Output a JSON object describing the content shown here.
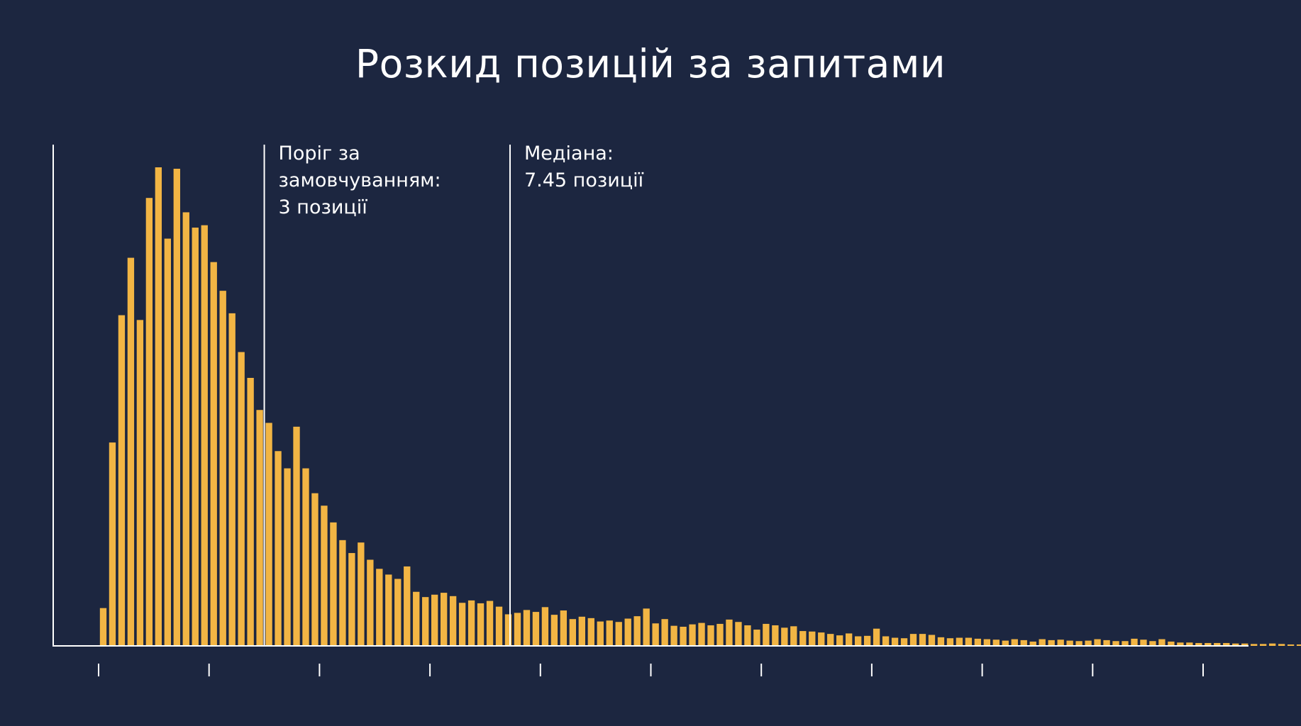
{
  "chart_data": {
    "type": "bar",
    "title": "Розкид позицій за запитами",
    "xlabel": "",
    "ylabel": "",
    "xlim": [
      0,
      20
    ],
    "ylim": [
      0,
      100
    ],
    "x_ticks": [
      0,
      2,
      4,
      6,
      8,
      10,
      12,
      14,
      16,
      18,
      20
    ],
    "tick_labels_shown": false,
    "bin_width": 0.1667,
    "bar_color": "#f2b544",
    "axis_color": "#ffffff",
    "values": [
      7.9,
      42.5,
      69.1,
      81.1,
      68.1,
      93.6,
      100,
      85.1,
      99.7,
      90.6,
      87.4,
      87.9,
      80.2,
      74.2,
      69.5,
      61.4,
      56.0,
      49.3,
      46.6,
      40.7,
      37.1,
      45.8,
      37.1,
      31.9,
      29.3,
      25.8,
      22.1,
      19.4,
      21.6,
      18.0,
      16.1,
      14.9,
      14.0,
      16.6,
      11.3,
      10.2,
      10.7,
      11.1,
      10.4,
      9.0,
      9.5,
      8.9,
      9.4,
      8.2,
      6.6,
      6.9,
      7.5,
      7.1,
      8.1,
      6.5,
      7.4,
      5.6,
      6.1,
      5.8,
      5.1,
      5.3,
      5.0,
      5.7,
      6.2,
      7.8,
      4.7,
      5.6,
      4.2,
      4.0,
      4.5,
      4.8,
      4.3,
      4.6,
      5.5,
      5.0,
      4.3,
      3.4,
      4.6,
      4.3,
      3.8,
      4.1,
      3.1,
      3.0,
      2.8,
      2.5,
      2.2,
      2.6,
      2.0,
      2.1,
      3.6,
      2.0,
      1.7,
      1.6,
      2.5,
      2.5,
      2.3,
      1.8,
      1.6,
      1.7,
      1.7,
      1.5,
      1.4,
      1.3,
      1.1,
      1.4,
      1.2,
      0.9,
      1.4,
      1.2,
      1.3,
      1.1,
      1.0,
      1.1,
      1.4,
      1.2,
      1.0,
      1.0,
      1.5,
      1.3,
      1.0,
      1.4,
      0.9,
      0.7,
      0.7,
      0.6,
      0.6,
      0.6,
      0.6,
      0.5,
      0.5,
      0.4,
      0.4,
      0.5,
      0.4,
      0.3,
      0.3,
      0.3,
      0.3,
      0.2,
      0.2,
      0.2,
      0.1,
      0.1,
      0.1,
      0.1
    ],
    "reference_lines": [
      {
        "id": "default",
        "x": 3,
        "label_lines": [
          "Поріг за",
          "замовчуванням:",
          "3 позиції"
        ]
      },
      {
        "id": "median",
        "x": 7.45,
        "label_lines": [
          "Медіана:",
          "7.45 позиції"
        ]
      }
    ]
  }
}
